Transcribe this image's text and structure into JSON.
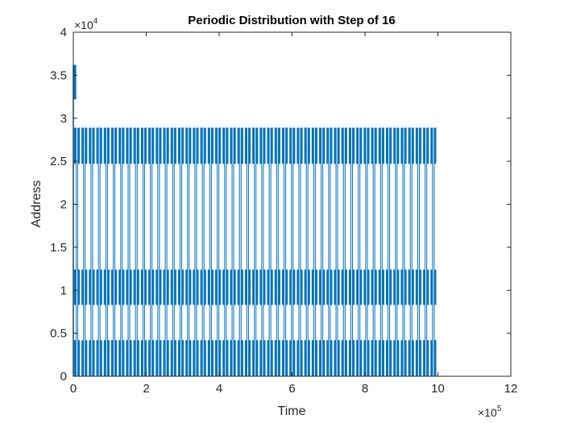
{
  "chart_data": {
    "type": "line",
    "title": "Periodic Distribution with Step of 16",
    "xlabel": "Time",
    "ylabel": "Address",
    "xlim": [
      0,
      12
    ],
    "ylim": [
      0,
      4
    ],
    "x_ticks": [
      "0",
      "2",
      "4",
      "6",
      "8",
      "10",
      "12"
    ],
    "y_ticks": [
      "0",
      "0.5",
      "1",
      "1.5",
      "2",
      "2.5",
      "3",
      "3.5",
      "4"
    ],
    "x_exponent": {
      "base": "×10",
      "power": "5"
    },
    "y_exponent": {
      "base": "×10",
      "power": "4"
    },
    "grid": false,
    "color": "#0072BD",
    "series": [
      {
        "periods": 49,
        "x_range": [
          0.02,
          10.0
        ],
        "bands": [
          {
            "y": [
              0.0,
              0.42
            ]
          },
          {
            "y": [
              0.83,
              1.24
            ]
          },
          {
            "y": [
              2.47,
              2.89
            ]
          }
        ],
        "initial_burst": {
          "x": [
            0.0,
            0.08
          ],
          "y": [
            3.22,
            3.62
          ]
        }
      }
    ]
  }
}
